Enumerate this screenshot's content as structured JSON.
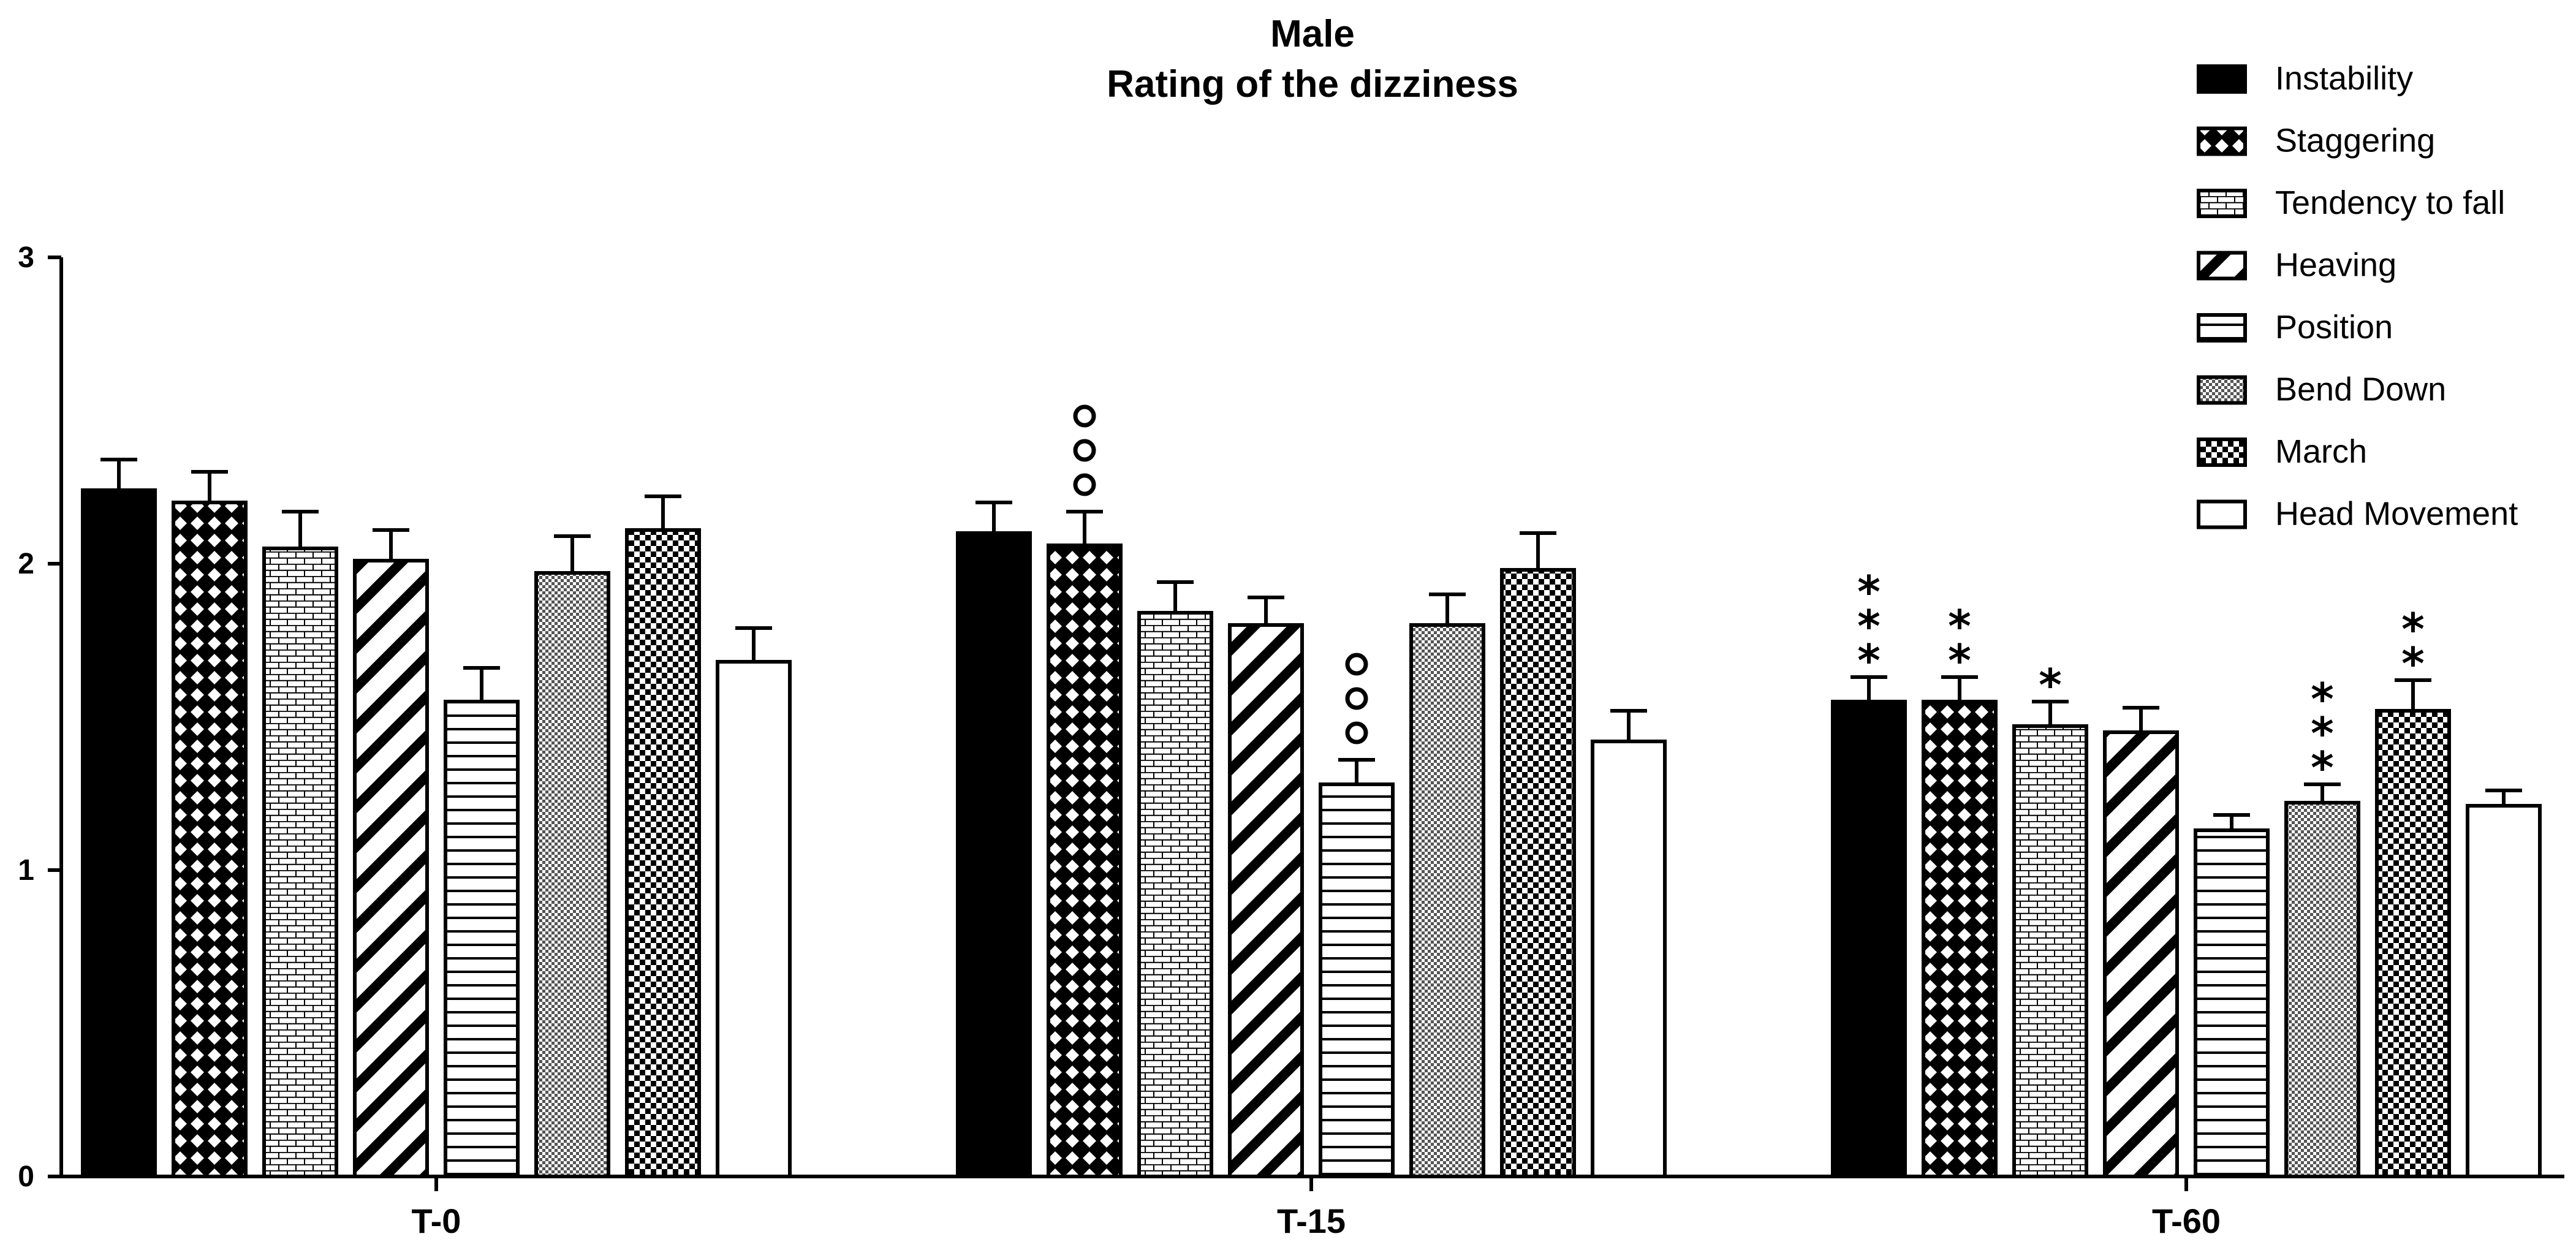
{
  "chart_data": {
    "type": "bar",
    "title": [
      "Male",
      "Rating of the dizziness"
    ],
    "xlabel": "",
    "ylabel": "",
    "ylim": [
      0,
      3
    ],
    "yticks": [
      0,
      1,
      2,
      3
    ],
    "categories": [
      "T-0",
      "T-15",
      "T-60"
    ],
    "series": [
      {
        "name": "Instability",
        "pattern": "solid",
        "values": [
          2.24,
          2.1,
          1.55
        ],
        "errors": [
          0.1,
          0.1,
          0.08
        ]
      },
      {
        "name": "Staggering",
        "pattern": "diamond",
        "values": [
          2.2,
          2.06,
          1.55
        ],
        "errors": [
          0.1,
          0.11,
          0.08
        ]
      },
      {
        "name": "Tendency to fall",
        "pattern": "brick",
        "values": [
          2.05,
          1.84,
          1.47
        ],
        "errors": [
          0.12,
          0.1,
          0.08
        ]
      },
      {
        "name": "Heaving",
        "pattern": "diagonal",
        "values": [
          2.01,
          1.8,
          1.45
        ],
        "errors": [
          0.1,
          0.09,
          0.08
        ]
      },
      {
        "name": "Position",
        "pattern": "horizontal",
        "values": [
          1.55,
          1.28,
          1.13
        ],
        "errors": [
          0.11,
          0.08,
          0.05
        ]
      },
      {
        "name": "Bend Down",
        "pattern": "dense-check",
        "values": [
          1.97,
          1.8,
          1.22
        ],
        "errors": [
          0.12,
          0.1,
          0.06
        ]
      },
      {
        "name": "March",
        "pattern": "checker",
        "values": [
          2.11,
          1.98,
          1.52
        ],
        "errors": [
          0.11,
          0.12,
          0.1
        ]
      },
      {
        "name": "Head Movement",
        "pattern": "white",
        "values": [
          1.68,
          1.42,
          1.21
        ],
        "errors": [
          0.11,
          0.1,
          0.05
        ]
      }
    ],
    "annotations": [
      {
        "category": "T-15",
        "series": "Staggering",
        "marks": [
          "o",
          "o",
          "o"
        ]
      },
      {
        "category": "T-15",
        "series": "Position",
        "marks": [
          "o",
          "o",
          "o"
        ]
      },
      {
        "category": "T-60",
        "series": "Instability",
        "marks": [
          "*",
          "*",
          "*"
        ]
      },
      {
        "category": "T-60",
        "series": "Staggering",
        "marks": [
          "*",
          "*"
        ]
      },
      {
        "category": "T-60",
        "series": "Tendency to fall",
        "marks": [
          "*"
        ]
      },
      {
        "category": "T-60",
        "series": "Bend Down",
        "marks": [
          "*",
          "*",
          "*"
        ]
      },
      {
        "category": "T-60",
        "series": "March",
        "marks": [
          "*",
          "*"
        ]
      }
    ],
    "legend_position": "top-right"
  }
}
